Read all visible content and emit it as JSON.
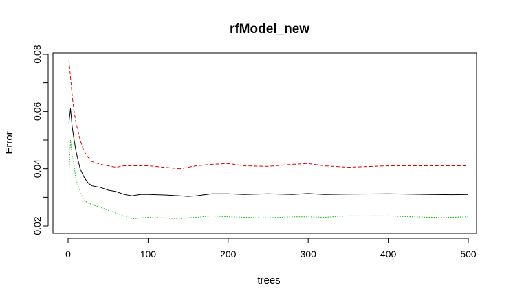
{
  "chart_data": {
    "type": "line",
    "title": "rfModel_new",
    "xlabel": "trees",
    "ylabel": "Error",
    "xlim": [
      0,
      500
    ],
    "ylim": [
      0.02,
      0.08
    ],
    "x_ticks": [
      0,
      100,
      200,
      300,
      400,
      500
    ],
    "y_ticks": [
      0.02,
      0.04,
      0.06,
      0.08
    ],
    "x_tick_labels": [
      "0",
      "100",
      "200",
      "300",
      "400",
      "500"
    ],
    "y_tick_labels": [
      "0.02",
      "0.04",
      "0.06",
      "0.08"
    ],
    "grid": false,
    "legend": "none",
    "series": [
      {
        "color": "#000000",
        "dash": "solid",
        "x": [
          1,
          3,
          5,
          7,
          10,
          15,
          20,
          25,
          30,
          40,
          50,
          60,
          70,
          80,
          90,
          100,
          120,
          140,
          150,
          160,
          180,
          200,
          220,
          250,
          280,
          300,
          320,
          350,
          400,
          450,
          480,
          500
        ],
        "y": [
          0.056,
          0.061,
          0.055,
          0.051,
          0.046,
          0.04,
          0.037,
          0.035,
          0.034,
          0.0335,
          0.0325,
          0.032,
          0.031,
          0.0305,
          0.031,
          0.031,
          0.0308,
          0.0305,
          0.0303,
          0.0305,
          0.0312,
          0.0312,
          0.031,
          0.0312,
          0.031,
          0.0313,
          0.031,
          0.0311,
          0.0312,
          0.031,
          0.0309,
          0.031
        ]
      },
      {
        "color": "#dd0000",
        "dash": "dashed",
        "x": [
          1,
          3,
          5,
          7,
          10,
          15,
          20,
          25,
          30,
          40,
          50,
          60,
          70,
          80,
          100,
          120,
          140,
          150,
          160,
          180,
          200,
          220,
          250,
          280,
          300,
          320,
          350,
          400,
          450,
          480,
          500
        ],
        "y": [
          0.078,
          0.072,
          0.066,
          0.061,
          0.056,
          0.05,
          0.046,
          0.044,
          0.0425,
          0.0415,
          0.041,
          0.0405,
          0.041,
          0.041,
          0.041,
          0.0405,
          0.04,
          0.0405,
          0.041,
          0.0415,
          0.0418,
          0.041,
          0.0408,
          0.0415,
          0.0418,
          0.041,
          0.0405,
          0.041,
          0.041,
          0.041,
          0.041
        ]
      },
      {
        "color": "#00bb00",
        "dash": "dotted",
        "x": [
          1,
          3,
          5,
          7,
          10,
          15,
          20,
          25,
          30,
          40,
          50,
          60,
          70,
          80,
          100,
          120,
          140,
          150,
          160,
          180,
          200,
          220,
          250,
          280,
          300,
          320,
          350,
          400,
          450,
          480,
          500
        ],
        "y": [
          0.038,
          0.05,
          0.045,
          0.042,
          0.036,
          0.032,
          0.029,
          0.028,
          0.0275,
          0.0265,
          0.0255,
          0.0245,
          0.0235,
          0.0225,
          0.023,
          0.0228,
          0.0225,
          0.0228,
          0.023,
          0.0235,
          0.0232,
          0.023,
          0.0228,
          0.0232,
          0.0232,
          0.023,
          0.0235,
          0.0235,
          0.023,
          0.023,
          0.0232
        ]
      }
    ]
  }
}
